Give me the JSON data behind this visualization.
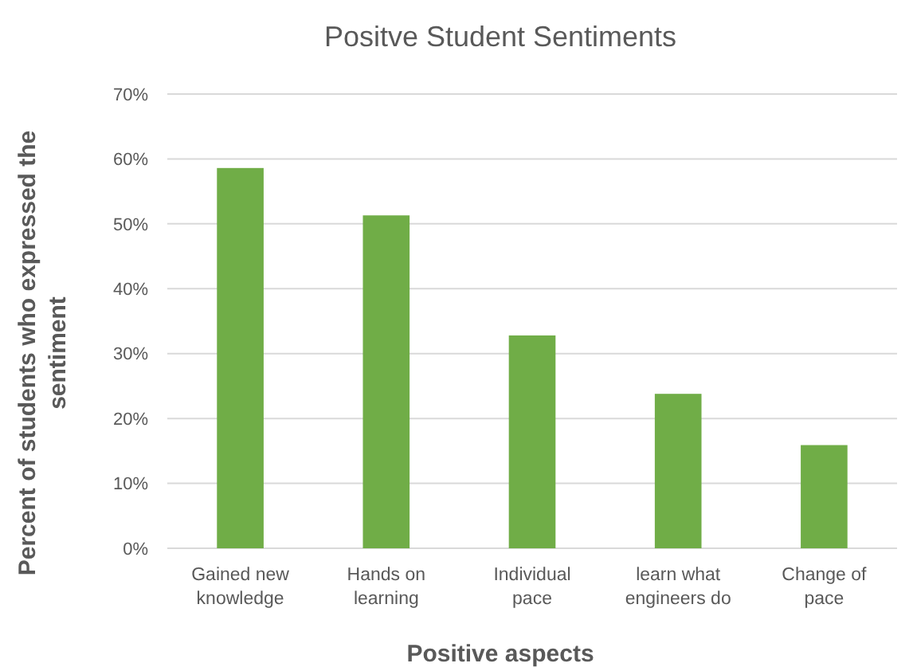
{
  "chart_data": {
    "type": "bar",
    "title": "Positve Student Sentiments",
    "xlabel": "Positive aspects",
    "ylabel": "Percent of students who expressed the sentiment",
    "categories": [
      "Gained new knowledge",
      "Hands on learning",
      "Individual pace",
      "learn what engineers do",
      "Change of pace"
    ],
    "values": [
      58.6,
      51.3,
      32.8,
      23.8,
      15.9
    ],
    "color": "#70ad47",
    "ylim": [
      0,
      70
    ],
    "yticks": [
      {
        "value": 0,
        "label": "0%"
      },
      {
        "value": 10,
        "label": "10%"
      },
      {
        "value": 20,
        "label": "20%"
      },
      {
        "value": 30,
        "label": "30%"
      },
      {
        "value": 40,
        "label": "40%"
      },
      {
        "value": 50,
        "label": "50%"
      },
      {
        "value": 60,
        "label": "60%"
      },
      {
        "value": 70,
        "label": "70%"
      }
    ],
    "grid": "y"
  }
}
